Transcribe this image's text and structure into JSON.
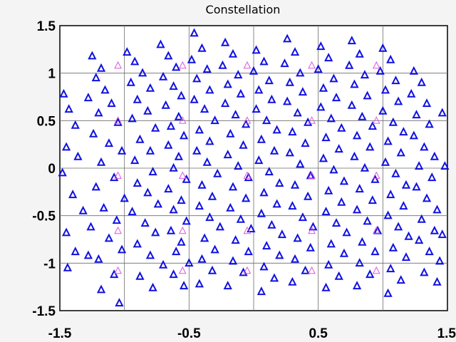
{
  "chart_data": {
    "type": "scatter",
    "title": "Constellation",
    "xlabel": "",
    "ylabel": "",
    "xlim": [
      -1.5,
      1.5
    ],
    "ylim": [
      -1.5,
      1.5
    ],
    "grid": true,
    "x_ticks": [
      -1.5,
      -1,
      -0.5,
      0,
      0.5,
      1,
      1.5
    ],
    "y_ticks": [
      -1.5,
      -1,
      -0.5,
      0,
      0.5,
      1,
      1.5
    ],
    "x_tick_labels": [
      "-1.5",
      "-0.5",
      "0.5",
      "1.5"
    ],
    "x_tick_label_values": [
      -1.5,
      -0.5,
      0.5,
      1.5
    ],
    "y_tick_labels": [
      "1.5",
      "1",
      "0.5",
      "0",
      "-0.5",
      "-1",
      "-1.5"
    ],
    "y_tick_label_values": [
      1.5,
      1,
      0.5,
      0,
      -0.5,
      -1,
      -1.5
    ],
    "marker": "triangle-up-open",
    "series": [
      {
        "color": "#1010e0",
        "points": [
          [
            -1.47,
            0.78
          ],
          [
            -1.43,
            0.62
          ],
          [
            -1.38,
            0.45
          ],
          [
            -1.45,
            0.22
          ],
          [
            -1.36,
            0.12
          ],
          [
            -1.48,
            -0.05
          ],
          [
            -1.4,
            -0.28
          ],
          [
            -1.32,
            -0.45
          ],
          [
            -1.45,
            -0.68
          ],
          [
            -1.38,
            -0.88
          ],
          [
            -1.28,
            -0.92
          ],
          [
            -1.44,
            -1.05
          ],
          [
            -1.25,
            1.18
          ],
          [
            -1.18,
            1.05
          ],
          [
            -1.22,
            0.95
          ],
          [
            -1.15,
            0.82
          ],
          [
            -1.28,
            0.74
          ],
          [
            -1.1,
            0.68
          ],
          [
            -1.2,
            0.58
          ],
          [
            -1.05,
            0.48
          ],
          [
            -1.24,
            0.36
          ],
          [
            -1.12,
            0.26
          ],
          [
            -1.02,
            0.18
          ],
          [
            -1.18,
            0.06
          ],
          [
            -1.08,
            -0.1
          ],
          [
            -1.22,
            -0.2
          ],
          [
            -1.0,
            -0.32
          ],
          [
            -1.16,
            -0.42
          ],
          [
            -1.06,
            -0.55
          ],
          [
            -1.26,
            -0.62
          ],
          [
            -1.12,
            -0.74
          ],
          [
            -1.02,
            -0.86
          ],
          [
            -1.2,
            -0.96
          ],
          [
            -1.08,
            -1.12
          ],
          [
            -1.18,
            -1.28
          ],
          [
            -1.04,
            -1.42
          ],
          [
            -0.98,
            1.22
          ],
          [
            -0.92,
            1.12
          ],
          [
            -0.86,
            1.0
          ],
          [
            -0.95,
            0.9
          ],
          [
            -0.8,
            0.84
          ],
          [
            -0.9,
            0.72
          ],
          [
            -0.82,
            0.6
          ],
          [
            -0.94,
            0.52
          ],
          [
            -0.76,
            0.42
          ],
          [
            -0.88,
            0.3
          ],
          [
            -0.8,
            0.18
          ],
          [
            -0.92,
            0.08
          ],
          [
            -0.78,
            -0.04
          ],
          [
            -0.9,
            -0.16
          ],
          [
            -0.82,
            -0.26
          ],
          [
            -0.74,
            -0.38
          ],
          [
            -0.94,
            -0.46
          ],
          [
            -0.84,
            -0.58
          ],
          [
            -0.76,
            -0.68
          ],
          [
            -0.9,
            -0.8
          ],
          [
            -0.8,
            -0.92
          ],
          [
            -0.7,
            -1.02
          ],
          [
            -0.88,
            -1.14
          ],
          [
            -0.78,
            -1.26
          ],
          [
            -0.72,
            1.3
          ],
          [
            -0.66,
            1.18
          ],
          [
            -0.6,
            1.06
          ],
          [
            -0.7,
            0.96
          ],
          [
            -0.62,
            0.86
          ],
          [
            -0.56,
            0.76
          ],
          [
            -0.68,
            0.66
          ],
          [
            -0.58,
            0.54
          ],
          [
            -0.64,
            0.44
          ],
          [
            -0.54,
            0.34
          ],
          [
            -0.66,
            0.24
          ],
          [
            -0.58,
            0.12
          ],
          [
            -0.62,
            0.0
          ],
          [
            -0.52,
            -0.12
          ],
          [
            -0.66,
            -0.22
          ],
          [
            -0.56,
            -0.34
          ],
          [
            -0.62,
            -0.44
          ],
          [
            -0.52,
            -0.56
          ],
          [
            -0.64,
            -0.66
          ],
          [
            -0.56,
            -0.78
          ],
          [
            -0.6,
            -0.88
          ],
          [
            -0.5,
            -1.0
          ],
          [
            -0.62,
            -1.12
          ],
          [
            -0.54,
            -1.24
          ],
          [
            -0.46,
            1.42
          ],
          [
            -0.4,
            1.26
          ],
          [
            -0.48,
            1.14
          ],
          [
            -0.36,
            1.04
          ],
          [
            -0.44,
            0.94
          ],
          [
            -0.34,
            0.82
          ],
          [
            -0.46,
            0.72
          ],
          [
            -0.38,
            0.62
          ],
          [
            -0.3,
            0.5
          ],
          [
            -0.42,
            0.4
          ],
          [
            -0.34,
            0.28
          ],
          [
            -0.44,
            0.18
          ],
          [
            -0.36,
            0.06
          ],
          [
            -0.28,
            -0.06
          ],
          [
            -0.4,
            -0.18
          ],
          [
            -0.32,
            -0.3
          ],
          [
            -0.42,
            -0.4
          ],
          [
            -0.34,
            -0.52
          ],
          [
            -0.26,
            -0.62
          ],
          [
            -0.38,
            -0.74
          ],
          [
            -0.3,
            -0.86
          ],
          [
            -0.4,
            -0.96
          ],
          [
            -0.32,
            -1.08
          ],
          [
            -0.42,
            -1.22
          ],
          [
            -0.22,
            1.32
          ],
          [
            -0.16,
            1.2
          ],
          [
            -0.24,
            1.08
          ],
          [
            -0.12,
            0.98
          ],
          [
            -0.2,
            0.88
          ],
          [
            -0.1,
            0.78
          ],
          [
            -0.22,
            0.68
          ],
          [
            -0.14,
            0.56
          ],
          [
            -0.06,
            0.46
          ],
          [
            -0.18,
            0.36
          ],
          [
            -0.08,
            0.24
          ],
          [
            -0.2,
            0.14
          ],
          [
            -0.12,
            0.02
          ],
          [
            -0.04,
            -0.1
          ],
          [
            -0.16,
            -0.2
          ],
          [
            -0.06,
            -0.32
          ],
          [
            -0.18,
            -0.42
          ],
          [
            -0.1,
            -0.54
          ],
          [
            -0.02,
            -0.64
          ],
          [
            -0.14,
            -0.76
          ],
          [
            -0.04,
            -0.88
          ],
          [
            -0.16,
            -0.98
          ],
          [
            -0.08,
            -1.1
          ],
          [
            -0.2,
            -1.24
          ],
          [
            0.02,
            1.24
          ],
          [
            0.08,
            1.12
          ],
          [
            0.0,
            1.02
          ],
          [
            0.12,
            0.92
          ],
          [
            0.04,
            0.82
          ],
          [
            0.14,
            0.72
          ],
          [
            0.02,
            0.62
          ],
          [
            0.1,
            0.5
          ],
          [
            0.18,
            0.4
          ],
          [
            0.06,
            0.3
          ],
          [
            0.16,
            0.18
          ],
          [
            0.04,
            0.08
          ],
          [
            0.12,
            -0.04
          ],
          [
            0.2,
            -0.16
          ],
          [
            0.08,
            -0.26
          ],
          [
            0.18,
            -0.38
          ],
          [
            0.06,
            -0.48
          ],
          [
            0.14,
            -0.6
          ],
          [
            0.22,
            -0.7
          ],
          [
            0.1,
            -0.82
          ],
          [
            0.2,
            -0.92
          ],
          [
            0.08,
            -1.04
          ],
          [
            0.16,
            -1.16
          ],
          [
            0.06,
            -1.3
          ],
          [
            0.26,
            1.36
          ],
          [
            0.32,
            1.22
          ],
          [
            0.24,
            1.1
          ],
          [
            0.36,
            1.0
          ],
          [
            0.28,
            0.9
          ],
          [
            0.38,
            0.8
          ],
          [
            0.26,
            0.7
          ],
          [
            0.34,
            0.58
          ],
          [
            0.42,
            0.48
          ],
          [
            0.3,
            0.38
          ],
          [
            0.4,
            0.26
          ],
          [
            0.28,
            0.16
          ],
          [
            0.36,
            0.04
          ],
          [
            0.44,
            -0.08
          ],
          [
            0.32,
            -0.18
          ],
          [
            0.42,
            -0.3
          ],
          [
            0.3,
            -0.4
          ],
          [
            0.38,
            -0.52
          ],
          [
            0.46,
            -0.62
          ],
          [
            0.34,
            -0.74
          ],
          [
            0.44,
            -0.84
          ],
          [
            0.32,
            -0.96
          ],
          [
            0.4,
            -1.08
          ],
          [
            0.3,
            -1.2
          ],
          [
            0.52,
            1.28
          ],
          [
            0.58,
            1.16
          ],
          [
            0.5,
            1.04
          ],
          [
            0.62,
            0.94
          ],
          [
            0.54,
            0.84
          ],
          [
            0.64,
            0.74
          ],
          [
            0.52,
            0.64
          ],
          [
            0.6,
            0.52
          ],
          [
            0.68,
            0.42
          ],
          [
            0.56,
            0.32
          ],
          [
            0.66,
            0.2
          ],
          [
            0.54,
            0.1
          ],
          [
            0.62,
            -0.02
          ],
          [
            0.7,
            -0.14
          ],
          [
            0.58,
            -0.24
          ],
          [
            0.68,
            -0.36
          ],
          [
            0.56,
            -0.46
          ],
          [
            0.64,
            -0.58
          ],
          [
            0.72,
            -0.68
          ],
          [
            0.6,
            -0.8
          ],
          [
            0.7,
            -0.9
          ],
          [
            0.58,
            -1.02
          ],
          [
            0.66,
            -1.14
          ],
          [
            0.56,
            -1.26
          ],
          [
            0.76,
            1.34
          ],
          [
            0.82,
            1.2
          ],
          [
            0.74,
            1.08
          ],
          [
            0.86,
            0.98
          ],
          [
            0.78,
            0.88
          ],
          [
            0.88,
            0.76
          ],
          [
            0.76,
            0.66
          ],
          [
            0.84,
            0.54
          ],
          [
            0.92,
            0.44
          ],
          [
            0.8,
            0.34
          ],
          [
            0.9,
            0.22
          ],
          [
            0.78,
            0.12
          ],
          [
            0.86,
            0.0
          ],
          [
            0.94,
            -0.12
          ],
          [
            0.82,
            -0.22
          ],
          [
            0.92,
            -0.34
          ],
          [
            0.8,
            -0.44
          ],
          [
            0.88,
            -0.56
          ],
          [
            0.96,
            -0.66
          ],
          [
            0.84,
            -0.78
          ],
          [
            0.94,
            -0.88
          ],
          [
            0.82,
            -1.0
          ],
          [
            0.9,
            -1.12
          ],
          [
            0.8,
            -1.24
          ],
          [
            1.0,
            1.26
          ],
          [
            1.06,
            1.14
          ],
          [
            0.98,
            1.02
          ],
          [
            1.1,
            0.92
          ],
          [
            1.02,
            0.82
          ],
          [
            1.12,
            0.7
          ],
          [
            1.0,
            0.6
          ],
          [
            1.08,
            0.48
          ],
          [
            1.16,
            0.38
          ],
          [
            1.04,
            0.28
          ],
          [
            1.14,
            0.16
          ],
          [
            1.02,
            0.06
          ],
          [
            1.1,
            -0.06
          ],
          [
            1.18,
            -0.18
          ],
          [
            1.06,
            -0.28
          ],
          [
            1.16,
            -0.4
          ],
          [
            1.04,
            -0.5
          ],
          [
            1.12,
            -0.62
          ],
          [
            1.2,
            -0.72
          ],
          [
            1.08,
            -0.84
          ],
          [
            1.18,
            -0.94
          ],
          [
            1.06,
            -1.06
          ],
          [
            1.14,
            -1.18
          ],
          [
            1.04,
            -1.32
          ],
          [
            1.24,
            1.02
          ],
          [
            1.3,
            0.9
          ],
          [
            1.22,
            0.78
          ],
          [
            1.34,
            0.68
          ],
          [
            1.26,
            0.56
          ],
          [
            1.36,
            0.46
          ],
          [
            1.24,
            0.34
          ],
          [
            1.32,
            0.22
          ],
          [
            1.4,
            0.12
          ],
          [
            1.28,
            0.02
          ],
          [
            1.38,
            -0.1
          ],
          [
            1.26,
            -0.2
          ],
          [
            1.34,
            -0.32
          ],
          [
            1.42,
            -0.44
          ],
          [
            1.3,
            -0.54
          ],
          [
            1.4,
            -0.66
          ],
          [
            1.28,
            -0.76
          ],
          [
            1.36,
            -0.88
          ],
          [
            1.44,
            -0.98
          ],
          [
            1.32,
            -1.1
          ],
          [
            1.42,
            -1.2
          ],
          [
            1.46,
            0.58
          ],
          [
            1.46,
            -0.7
          ],
          [
            1.48,
            0.02
          ]
        ]
      },
      {
        "color": "#dd55dd",
        "points": [
          [
            -1.05,
            1.08
          ],
          [
            -0.55,
            1.08
          ],
          [
            -0.05,
            1.08
          ],
          [
            0.45,
            1.08
          ],
          [
            0.95,
            1.08
          ],
          [
            -1.05,
            0.5
          ],
          [
            -0.55,
            0.5
          ],
          [
            -0.05,
            0.5
          ],
          [
            0.45,
            0.5
          ],
          [
            0.95,
            0.5
          ],
          [
            -1.05,
            -0.08
          ],
          [
            -0.55,
            -0.08
          ],
          [
            -0.05,
            -0.08
          ],
          [
            0.45,
            -0.08
          ],
          [
            0.95,
            -0.08
          ],
          [
            -1.05,
            -0.66
          ],
          [
            -0.55,
            -0.66
          ],
          [
            -0.05,
            -0.66
          ],
          [
            0.45,
            -0.66
          ],
          [
            0.95,
            -0.66
          ],
          [
            -1.05,
            -1.08
          ],
          [
            -0.55,
            -1.08
          ],
          [
            -0.05,
            -1.08
          ],
          [
            0.45,
            -1.08
          ],
          [
            0.95,
            -1.08
          ]
        ]
      }
    ]
  }
}
